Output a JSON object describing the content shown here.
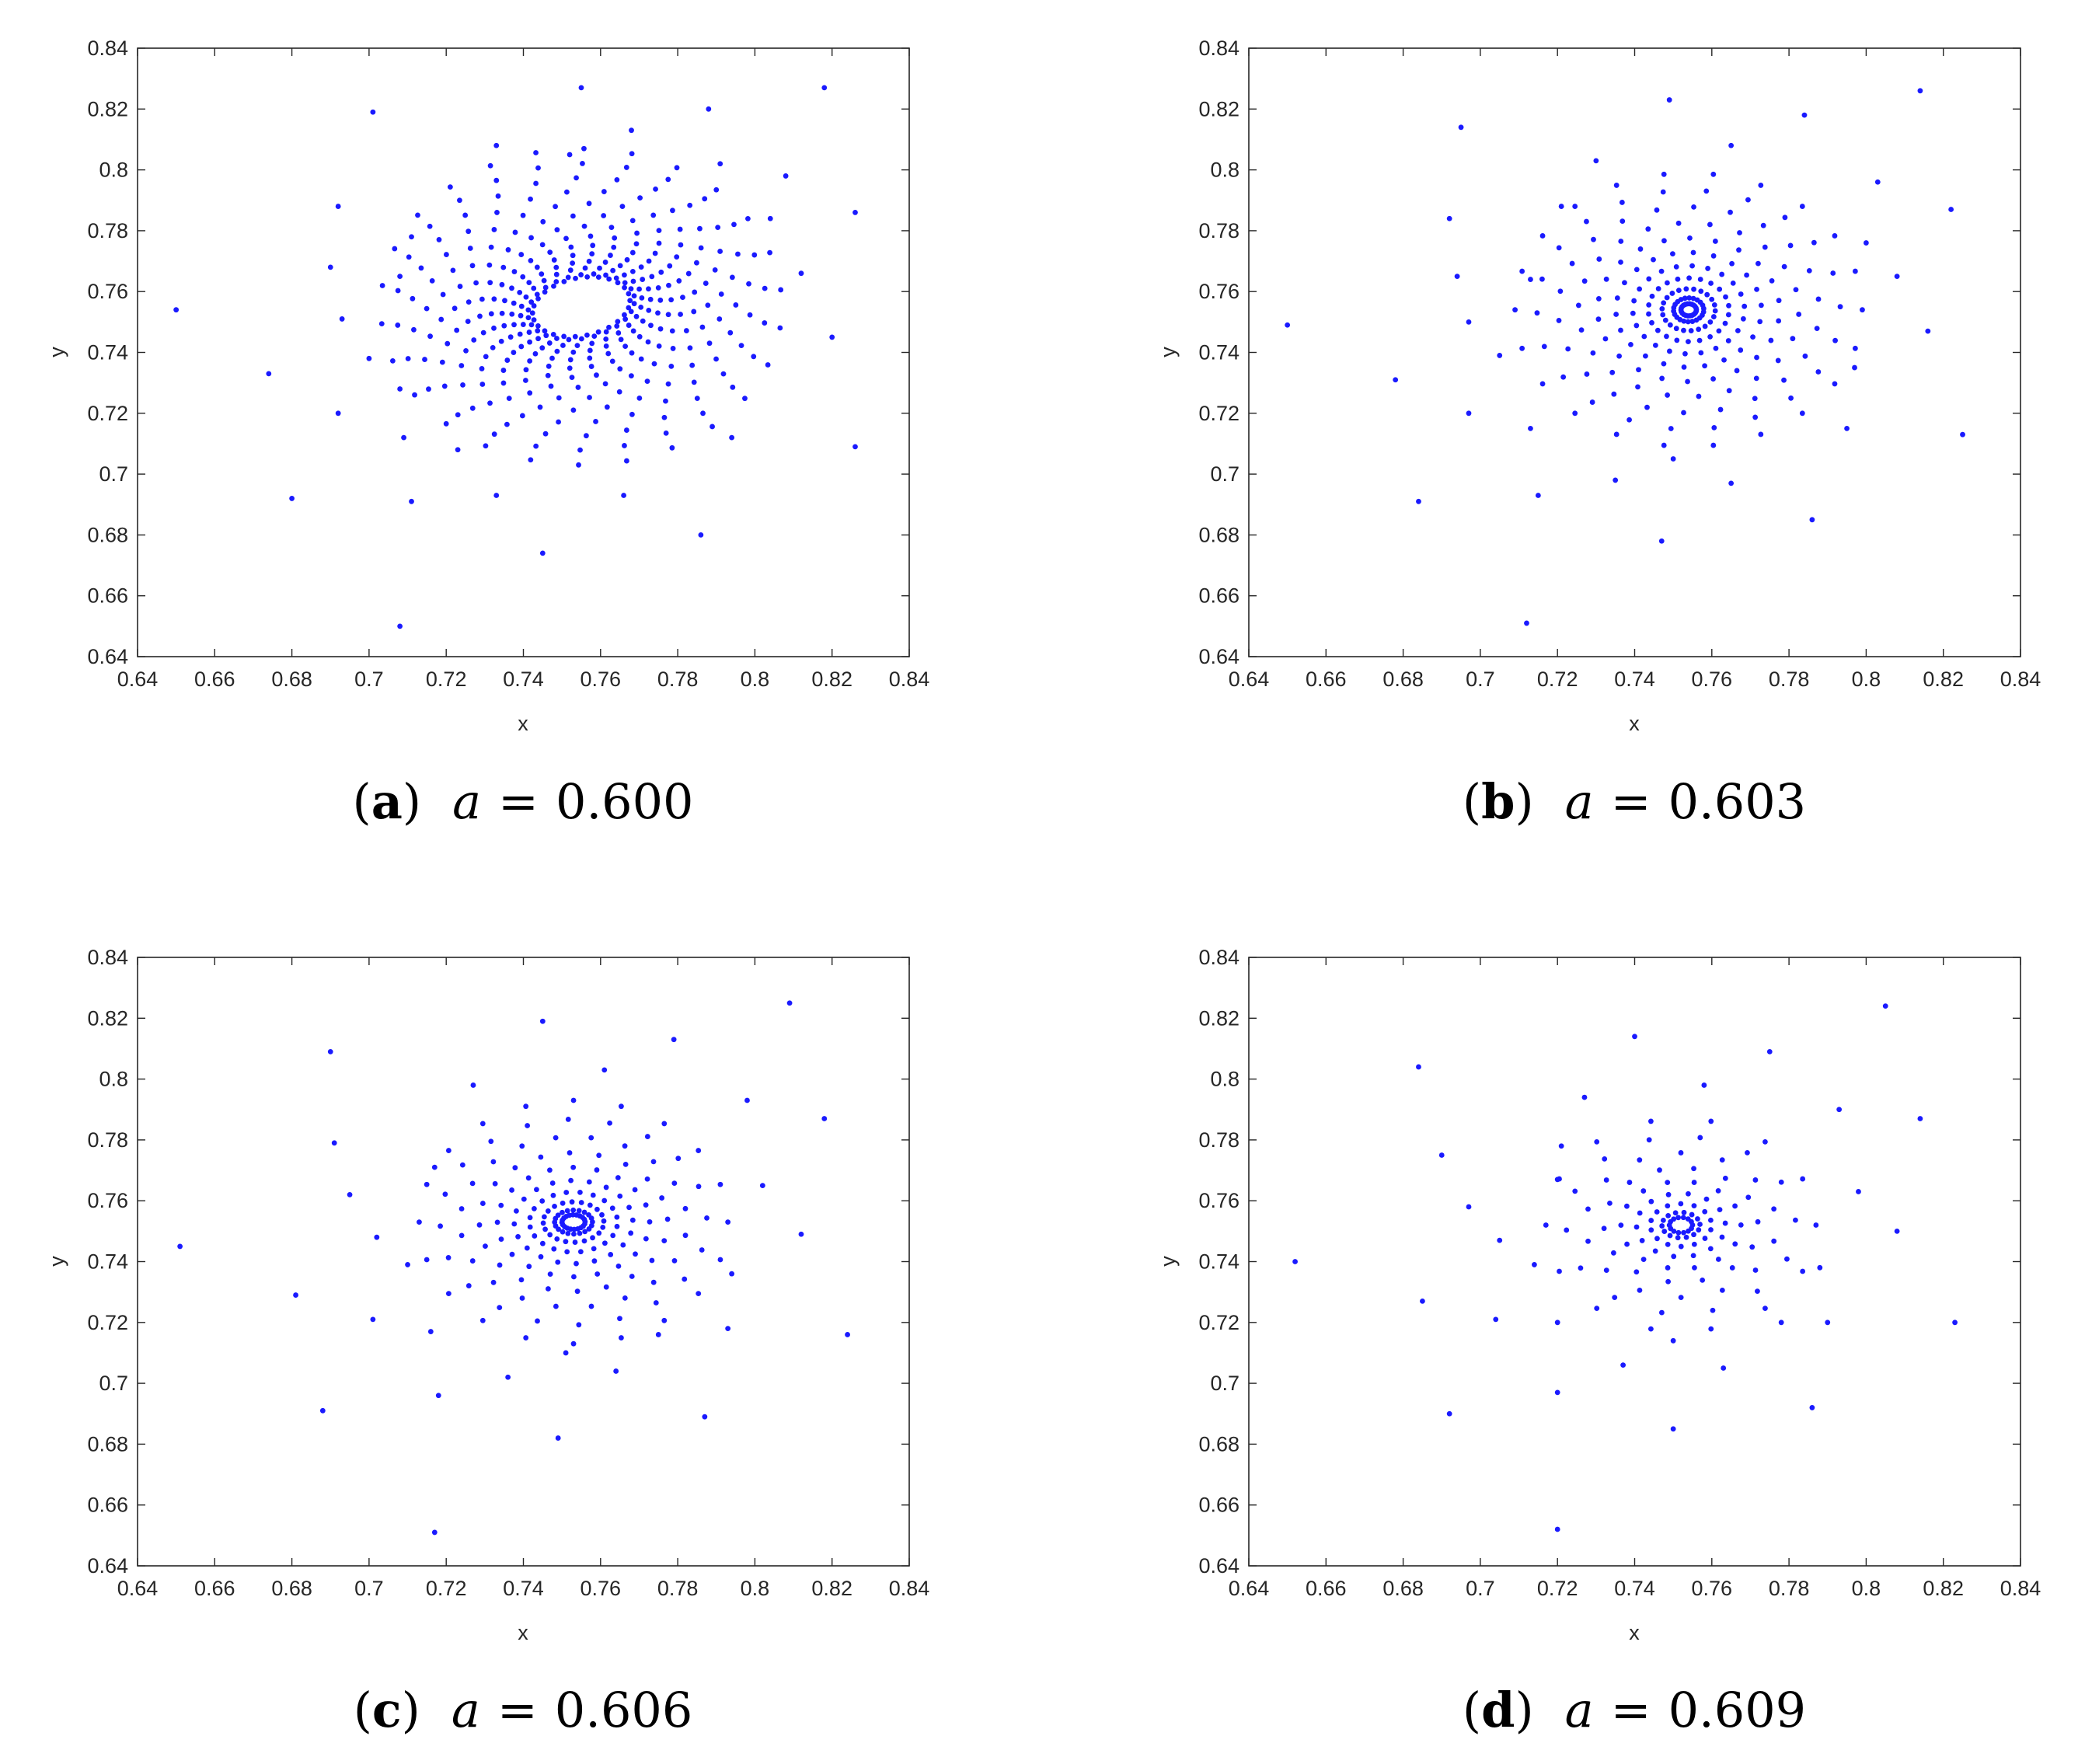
{
  "colors": {
    "points": "#1a1aff",
    "axis": "#262626",
    "background": "#ffffff"
  },
  "chart_data": [
    {
      "id": "a",
      "type": "scatter",
      "caption": {
        "letter": "a",
        "variable": "a",
        "equals": "=",
        "value": "0.600"
      },
      "xlabel": "x",
      "ylabel": "y",
      "xlim": [
        0.64,
        0.84
      ],
      "ylim": [
        0.64,
        0.84
      ],
      "xticks": [
        "0.64",
        "0.66",
        "0.68",
        "0.7",
        "0.72",
        "0.74",
        "0.76",
        "0.78",
        "0.8",
        "0.82",
        "0.84"
      ],
      "yticks": [
        "0.64",
        "0.66",
        "0.68",
        "0.7",
        "0.72",
        "0.74",
        "0.76",
        "0.78",
        "0.8",
        "0.82",
        "0.84"
      ],
      "grid": false,
      "marker": "dot",
      "pattern": {
        "kind": "spiral-arms",
        "center": [
          0.755,
          0.755
        ],
        "arms": 26,
        "inner_radius": 0.013,
        "ellipse_ratio": 0.72,
        "ellipse_angle_deg": 20,
        "twist": 2.4,
        "dense_points_per_arm": 14,
        "dense_outer_radius": 0.052
      },
      "outer_points": [
        [
          0.65,
          0.754
        ],
        [
          0.674,
          0.733
        ],
        [
          0.68,
          0.692
        ],
        [
          0.69,
          0.768
        ],
        [
          0.692,
          0.788
        ],
        [
          0.692,
          0.72
        ],
        [
          0.693,
          0.751
        ],
        [
          0.7,
          0.738
        ],
        [
          0.701,
          0.819
        ],
        [
          0.708,
          0.765
        ],
        [
          0.708,
          0.728
        ],
        [
          0.709,
          0.712
        ],
        [
          0.708,
          0.65
        ],
        [
          0.711,
          0.778
        ],
        [
          0.711,
          0.691
        ],
        [
          0.723,
          0.708
        ],
        [
          0.733,
          0.808
        ],
        [
          0.733,
          0.693
        ],
        [
          0.745,
          0.674
        ],
        [
          0.752,
          0.805
        ],
        [
          0.755,
          0.827
        ],
        [
          0.766,
          0.693
        ],
        [
          0.768,
          0.813
        ],
        [
          0.786,
          0.68
        ],
        [
          0.788,
          0.82
        ],
        [
          0.791,
          0.802
        ],
        [
          0.794,
          0.712
        ],
        [
          0.804,
          0.784
        ],
        [
          0.808,
          0.798
        ],
        [
          0.812,
          0.766
        ],
        [
          0.818,
          0.827
        ],
        [
          0.82,
          0.745
        ],
        [
          0.826,
          0.786
        ],
        [
          0.826,
          0.709
        ]
      ]
    },
    {
      "id": "b",
      "type": "scatter",
      "caption": {
        "letter": "b",
        "variable": "a",
        "equals": "=",
        "value": "0.603"
      },
      "xlabel": "x",
      "ylabel": "y",
      "xlim": [
        0.64,
        0.84
      ],
      "ylim": [
        0.64,
        0.84
      ],
      "xticks": [
        "0.64",
        "0.66",
        "0.68",
        "0.7",
        "0.72",
        "0.74",
        "0.76",
        "0.78",
        "0.8",
        "0.82",
        "0.84"
      ],
      "yticks": [
        "0.64",
        "0.66",
        "0.68",
        "0.7",
        "0.72",
        "0.74",
        "0.76",
        "0.78",
        "0.8",
        "0.82",
        "0.84"
      ],
      "grid": false,
      "marker": "dot",
      "pattern": {
        "kind": "spiral-arms",
        "center": [
          0.754,
          0.754
        ],
        "arms": 22,
        "inner_radius": 0.002,
        "ellipse_ratio": 1.0,
        "ellipse_angle_deg": 0,
        "twist": 2.6,
        "dense_points_per_arm": 11,
        "dense_outer_radius": 0.045
      },
      "outer_points": [
        [
          0.65,
          0.749
        ],
        [
          0.678,
          0.731
        ],
        [
          0.684,
          0.691
        ],
        [
          0.692,
          0.784
        ],
        [
          0.694,
          0.765
        ],
        [
          0.695,
          0.814
        ],
        [
          0.697,
          0.72
        ],
        [
          0.697,
          0.75
        ],
        [
          0.705,
          0.739
        ],
        [
          0.712,
          0.651
        ],
        [
          0.713,
          0.764
        ],
        [
          0.713,
          0.715
        ],
        [
          0.715,
          0.693
        ],
        [
          0.721,
          0.788
        ],
        [
          0.73,
          0.803
        ],
        [
          0.735,
          0.698
        ],
        [
          0.747,
          0.678
        ],
        [
          0.749,
          0.823
        ],
        [
          0.75,
          0.705
        ],
        [
          0.765,
          0.697
        ],
        [
          0.765,
          0.808
        ],
        [
          0.784,
          0.818
        ],
        [
          0.786,
          0.685
        ],
        [
          0.795,
          0.715
        ],
        [
          0.797,
          0.735
        ],
        [
          0.8,
          0.776
        ],
        [
          0.803,
          0.796
        ],
        [
          0.808,
          0.765
        ],
        [
          0.814,
          0.826
        ],
        [
          0.816,
          0.747
        ],
        [
          0.822,
          0.787
        ],
        [
          0.825,
          0.713
        ]
      ]
    },
    {
      "id": "c",
      "type": "scatter",
      "caption": {
        "letter": "c",
        "variable": "a",
        "equals": "=",
        "value": "0.606"
      },
      "xlabel": "x",
      "ylabel": "y",
      "xlim": [
        0.64,
        0.84
      ],
      "ylim": [
        0.64,
        0.84
      ],
      "xticks": [
        "0.64",
        "0.66",
        "0.68",
        "0.7",
        "0.72",
        "0.74",
        "0.76",
        "0.78",
        "0.8",
        "0.82",
        "0.84"
      ],
      "yticks": [
        "0.64",
        "0.66",
        "0.68",
        "0.7",
        "0.72",
        "0.74",
        "0.76",
        "0.78",
        "0.8",
        "0.82",
        "0.84"
      ],
      "grid": false,
      "marker": "dot",
      "pattern": {
        "kind": "spiral-arms",
        "center": [
          0.753,
          0.753
        ],
        "arms": 20,
        "inner_radius": 0.003,
        "ellipse_ratio": 0.8,
        "ellipse_angle_deg": 0,
        "twist": 3.2,
        "dense_points_per_arm": 10,
        "dense_outer_radius": 0.04
      },
      "outer_points": [
        [
          0.651,
          0.745
        ],
        [
          0.681,
          0.729
        ],
        [
          0.688,
          0.691
        ],
        [
          0.69,
          0.809
        ],
        [
          0.691,
          0.779
        ],
        [
          0.695,
          0.762
        ],
        [
          0.701,
          0.721
        ],
        [
          0.702,
          0.748
        ],
        [
          0.71,
          0.739
        ],
        [
          0.716,
          0.717
        ],
        [
          0.717,
          0.651
        ],
        [
          0.717,
          0.771
        ],
        [
          0.718,
          0.696
        ],
        [
          0.727,
          0.798
        ],
        [
          0.736,
          0.702
        ],
        [
          0.745,
          0.819
        ],
        [
          0.749,
          0.682
        ],
        [
          0.751,
          0.71
        ],
        [
          0.761,
          0.803
        ],
        [
          0.764,
          0.704
        ],
        [
          0.775,
          0.716
        ],
        [
          0.779,
          0.813
        ],
        [
          0.787,
          0.689
        ],
        [
          0.793,
          0.718
        ],
        [
          0.794,
          0.736
        ],
        [
          0.798,
          0.793
        ],
        [
          0.802,
          0.765
        ],
        [
          0.809,
          0.825
        ],
        [
          0.812,
          0.749
        ],
        [
          0.818,
          0.787
        ],
        [
          0.824,
          0.716
        ]
      ]
    },
    {
      "id": "d",
      "type": "scatter",
      "caption": {
        "letter": "d",
        "variable": "a",
        "equals": "=",
        "value": "0.609"
      },
      "xlabel": "x",
      "ylabel": "y",
      "xlim": [
        0.64,
        0.84
      ],
      "ylim": [
        0.64,
        0.84
      ],
      "xticks": [
        "0.64",
        "0.66",
        "0.68",
        "0.7",
        "0.72",
        "0.74",
        "0.76",
        "0.78",
        "0.8",
        "0.82",
        "0.84"
      ],
      "yticks": [
        "0.64",
        "0.66",
        "0.68",
        "0.7",
        "0.72",
        "0.74",
        "0.76",
        "0.78",
        "0.8",
        "0.82",
        "0.84"
      ],
      "grid": false,
      "marker": "dot",
      "pattern": {
        "kind": "spiral-arms",
        "center": [
          0.752,
          0.752
        ],
        "arms": 14,
        "inner_radius": 0.003,
        "ellipse_ratio": 0.85,
        "ellipse_angle_deg": 0,
        "twist": 3.6,
        "dense_points_per_arm": 9,
        "dense_outer_radius": 0.035
      },
      "outer_points": [
        [
          0.652,
          0.74
        ],
        [
          0.684,
          0.804
        ],
        [
          0.685,
          0.727
        ],
        [
          0.69,
          0.775
        ],
        [
          0.692,
          0.69
        ],
        [
          0.697,
          0.758
        ],
        [
          0.704,
          0.721
        ],
        [
          0.705,
          0.747
        ],
        [
          0.714,
          0.739
        ],
        [
          0.72,
          0.72
        ],
        [
          0.72,
          0.652
        ],
        [
          0.72,
          0.697
        ],
        [
          0.72,
          0.767
        ],
        [
          0.721,
          0.778
        ],
        [
          0.727,
          0.794
        ],
        [
          0.737,
          0.706
        ],
        [
          0.74,
          0.814
        ],
        [
          0.75,
          0.685
        ],
        [
          0.75,
          0.714
        ],
        [
          0.758,
          0.798
        ],
        [
          0.763,
          0.705
        ],
        [
          0.775,
          0.809
        ],
        [
          0.778,
          0.72
        ],
        [
          0.786,
          0.692
        ],
        [
          0.788,
          0.738
        ],
        [
          0.79,
          0.72
        ],
        [
          0.793,
          0.79
        ],
        [
          0.798,
          0.763
        ],
        [
          0.805,
          0.824
        ],
        [
          0.808,
          0.75
        ],
        [
          0.814,
          0.787
        ],
        [
          0.823,
          0.72
        ]
      ]
    }
  ]
}
